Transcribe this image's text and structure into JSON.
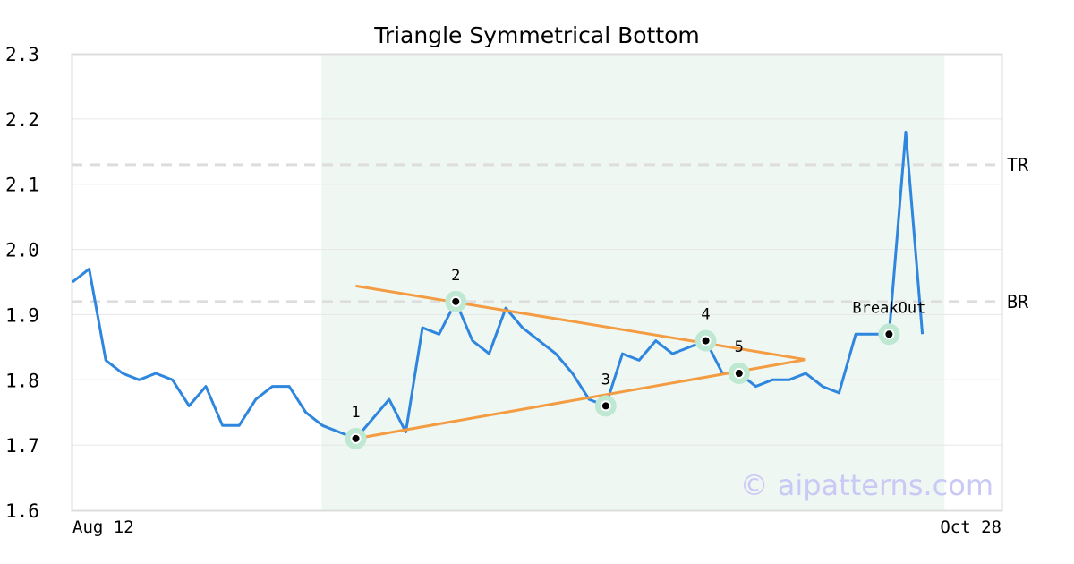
{
  "chart_data": {
    "type": "line",
    "title": "Triangle Symmetrical Bottom",
    "xlabel": "",
    "ylabel": "",
    "ylim": [
      1.6,
      2.3
    ],
    "yticks": [
      "1.6",
      "1.7",
      "1.8",
      "1.9",
      "2.0",
      "2.1",
      "2.2",
      "2.3"
    ],
    "x_tick_labels": [
      "Aug 12",
      "Oct 28"
    ],
    "grid": true,
    "series": [
      {
        "values": [
          1.95,
          1.97,
          1.83,
          1.81,
          1.8,
          1.81,
          1.8,
          1.76,
          1.79,
          1.73,
          1.73,
          1.77,
          1.79,
          1.79,
          1.75,
          1.73,
          1.72,
          1.71,
          1.74,
          1.77,
          1.72,
          1.88,
          1.87,
          1.92,
          1.86,
          1.84,
          1.91,
          1.88,
          1.86,
          1.84,
          1.81,
          1.77,
          1.76,
          1.84,
          1.83,
          1.86,
          1.84,
          1.85,
          1.86,
          1.81,
          1.81,
          1.79,
          1.8,
          1.8,
          1.81,
          1.79,
          1.78,
          1.87,
          1.87,
          1.87,
          2.18,
          1.87
        ],
        "color": "#2e86de"
      }
    ],
    "pattern_region": {
      "start_index": 15,
      "end_index": 52,
      "color": "#eff7f3"
    },
    "levels": [
      {
        "label": "TR",
        "value": 2.13
      },
      {
        "label": "BR",
        "value": 1.92
      }
    ],
    "trendlines": [
      {
        "from": [
          17,
          1.944
        ],
        "to": [
          44,
          1.831
        ],
        "color": "#f39c42"
      },
      {
        "from": [
          17,
          1.71
        ],
        "to": [
          44,
          1.831
        ],
        "color": "#f39c42"
      }
    ],
    "pattern_points": [
      {
        "label": "1",
        "index": 17,
        "value": 1.71
      },
      {
        "label": "2",
        "index": 23,
        "value": 1.92
      },
      {
        "label": "3",
        "index": 32,
        "value": 1.76
      },
      {
        "label": "4",
        "index": 38,
        "value": 1.86
      },
      {
        "label": "5",
        "index": 40,
        "value": 1.81
      },
      {
        "label": "BreakOut",
        "index": 49,
        "value": 1.87
      }
    ],
    "watermark": "© aipatterns.com"
  }
}
